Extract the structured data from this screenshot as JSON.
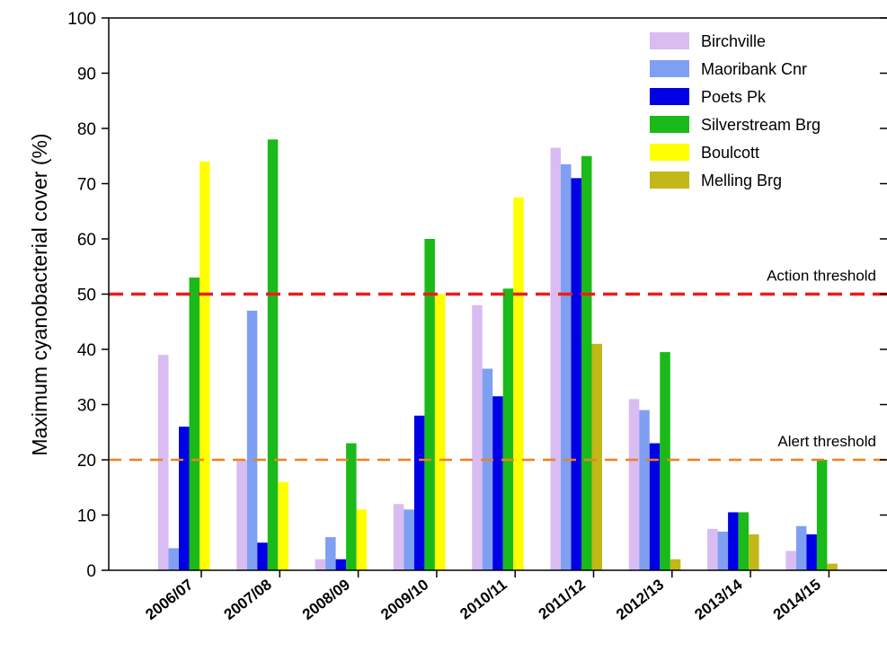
{
  "chart_data": {
    "type": "bar",
    "title": "",
    "xlabel": "",
    "ylabel": "Maximum cyanobacterial cover (%)",
    "ylim": [
      0,
      100
    ],
    "yticks": [
      0,
      10,
      20,
      30,
      40,
      50,
      60,
      70,
      80,
      90,
      100
    ],
    "categories": [
      "2006/07",
      "2007/08",
      "2008/09",
      "2009/10",
      "2010/11",
      "2011/12",
      "2012/13",
      "2013/14",
      "2014/15"
    ],
    "legend_position": "top-right",
    "grid": false,
    "series": [
      {
        "name": "Birchville",
        "color": "#d8bcf2",
        "values": [
          39,
          20,
          2,
          12,
          48,
          76.5,
          31,
          7.5,
          3.5
        ]
      },
      {
        "name": "Maoribank Cnr",
        "color": "#7f9ff2",
        "values": [
          4,
          47,
          6,
          11,
          36.5,
          73.5,
          29,
          7,
          8
        ]
      },
      {
        "name": "Poets Pk",
        "color": "#0000e6",
        "values": [
          26,
          5,
          2,
          28,
          31.5,
          71,
          23,
          10.5,
          6.5
        ]
      },
      {
        "name": "Silverstream Brg",
        "color": "#1aba1a",
        "values": [
          53,
          78,
          23,
          60,
          51,
          75,
          39.5,
          10.5,
          20
        ]
      },
      {
        "name": "Boulcott",
        "color": "#ffff00",
        "values": [
          74,
          16,
          11,
          50,
          67.5,
          null,
          null,
          null,
          null
        ]
      },
      {
        "name": "Melling Brg",
        "color": "#c2b818",
        "values": [
          null,
          null,
          null,
          null,
          null,
          41,
          2,
          6.5,
          1.2
        ]
      }
    ],
    "thresholds": [
      {
        "label": "Action threshold",
        "value": 50,
        "color": "#ee1c1c"
      },
      {
        "label": "Alert threshold",
        "value": 20,
        "color": "#f0801e"
      }
    ]
  }
}
